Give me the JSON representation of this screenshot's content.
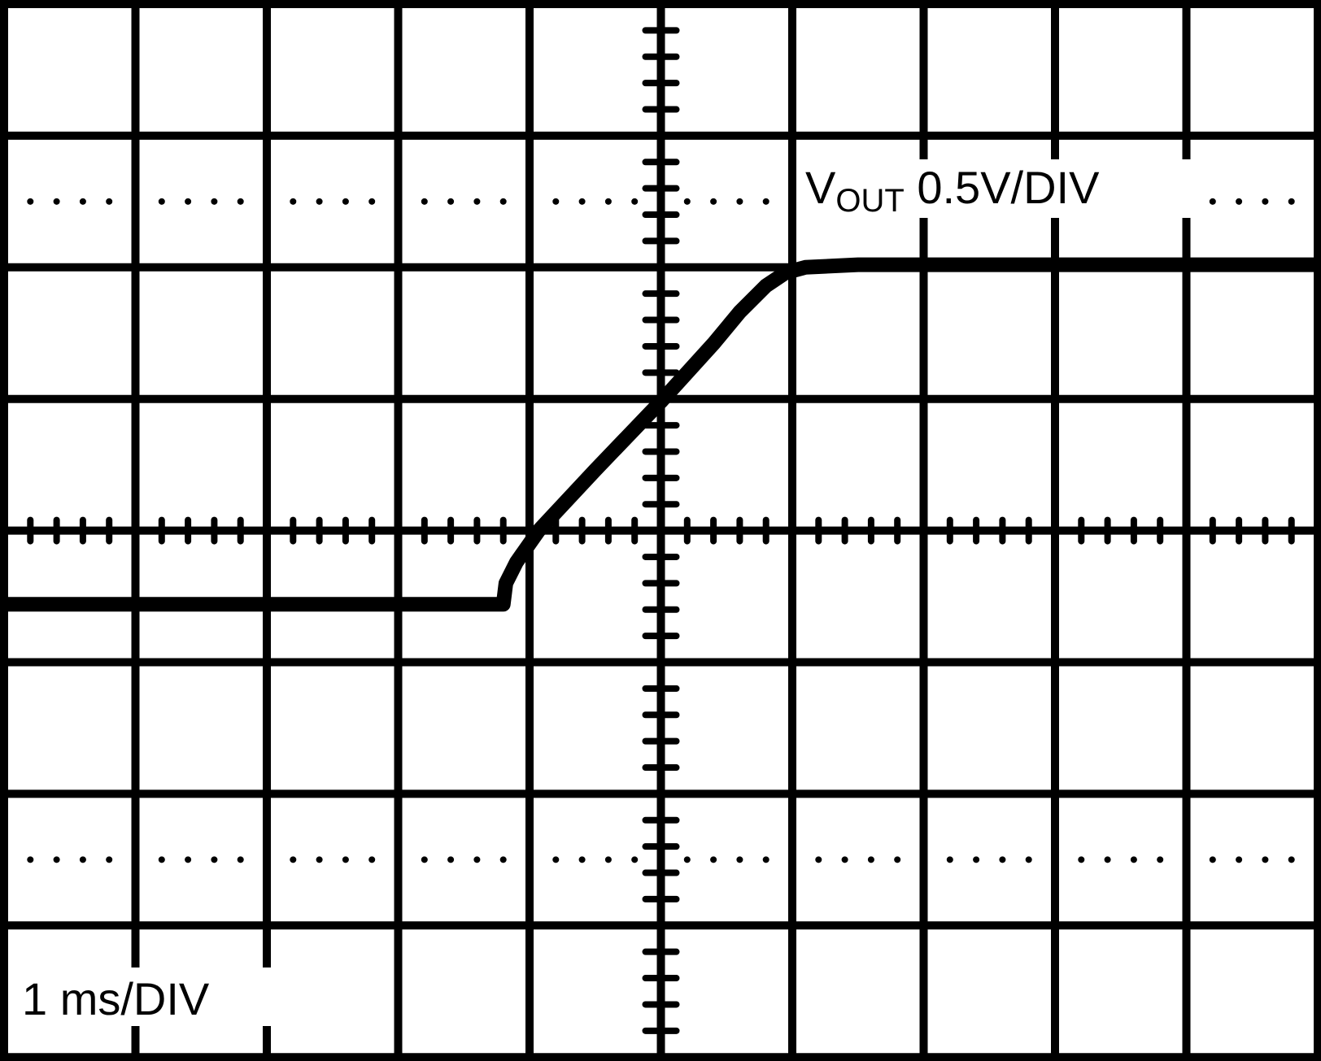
{
  "chart_data": {
    "type": "line",
    "title": "",
    "grid": true,
    "x_divisions": 10,
    "y_divisions": 8,
    "x_scale_label": "1 ms/DIV",
    "y_scale_label": {
      "base": "V",
      "sub": "OUT",
      "rest": " 0.5V/DIV"
    },
    "xlim_ms": [
      -5,
      5
    ],
    "ylim_v": [
      -2,
      2
    ],
    "series": [
      {
        "name": "VOUT",
        "color": "#000000",
        "x_ms": [
          -5,
          -1.2,
          -1.18,
          -1.1,
          -0.93,
          -0.5,
          0,
          0.4,
          0.6,
          0.8,
          0.95,
          1.1,
          1.5,
          5
        ],
        "y_v": [
          -0.28,
          -0.28,
          -0.2,
          -0.12,
          0.0,
          0.23,
          0.49,
          0.71,
          0.83,
          0.93,
          0.98,
          1.0,
          1.01,
          1.01
        ]
      }
    ]
  }
}
